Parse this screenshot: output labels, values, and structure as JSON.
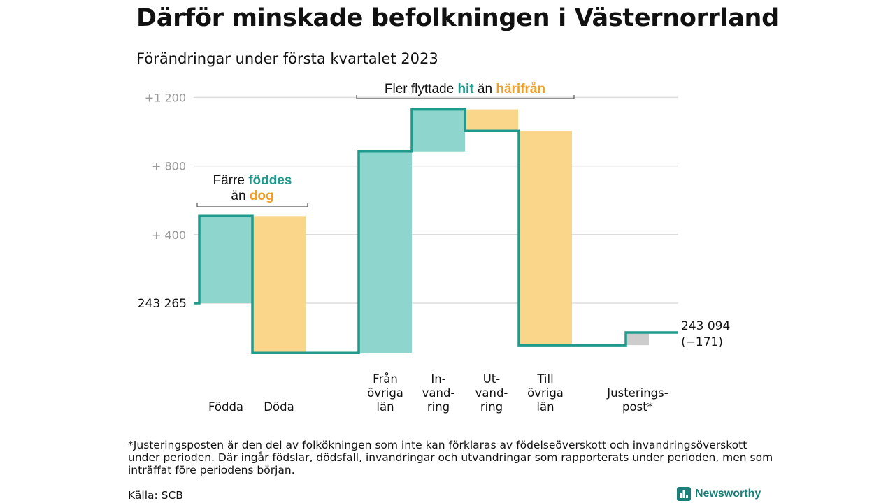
{
  "title": "Därför minskade befolkningen i Västernorrland",
  "subtitle": "Förändringar under första kvartalet 2023",
  "chart_data": {
    "type": "waterfall",
    "baseline": 243265,
    "baseline_label": "243 265",
    "end_label_line1": "243 094",
    "end_label_line2": "(−171)",
    "y_ticks": [
      {
        "value": 1200,
        "label": "+1 200"
      },
      {
        "value": 800,
        "label": "+ 800"
      },
      {
        "value": 400,
        "label": "+ 400"
      },
      {
        "value": 0,
        "label": ""
      }
    ],
    "ylim": [
      -300,
      1300
    ],
    "grid": true,
    "steps": [
      {
        "label_lines": [
          "Födda"
        ],
        "start": 0,
        "end": 508,
        "kind": "in"
      },
      {
        "label_lines": [
          "Döda"
        ],
        "start": 508,
        "end": -290,
        "kind": "out"
      },
      {
        "label_lines": [
          "Från",
          "övriga",
          "län"
        ],
        "start": -290,
        "end": 885,
        "kind": "in"
      },
      {
        "label_lines": [
          "In-",
          "vand-",
          "ring"
        ],
        "start": 885,
        "end": 1130,
        "kind": "in"
      },
      {
        "label_lines": [
          "Ut-",
          "vand-",
          "ring"
        ],
        "start": 1130,
        "end": 1005,
        "kind": "out"
      },
      {
        "label_lines": [
          "Till",
          "övriga",
          "län"
        ],
        "start": 1005,
        "end": -245,
        "kind": "out"
      },
      {
        "label_lines": [
          "Justerings-",
          "post*"
        ],
        "start": -245,
        "end": -171,
        "kind": "adjust"
      }
    ],
    "annotations": [
      {
        "parts": [
          "Färre ",
          "föddes"
        ],
        "line2_parts": [
          "än ",
          "dog"
        ]
      },
      {
        "parts": [
          "Fler flyttade ",
          "hit",
          " än ",
          "härifrån"
        ]
      }
    ],
    "colors": {
      "in": "#8dd5cd",
      "out": "#fad68b",
      "adjust": "#cccccc",
      "line": "#1f9a8c",
      "hit": "#1f9a8c",
      "dit": "#f0a028",
      "grid": "#dddddd",
      "tick": "#999999"
    }
  },
  "footnote": "*Justeringsposten är den del av folkökningen som inte kan förklaras av födelseöverskott och invandringsöverskott under perioden. Där ingår födslar, dödsfall, invandringar och utvandringar som rapporterats under perioden, men som inträffat före periodens början.",
  "source": "Källa: SCB",
  "brand": {
    "name": "Newsworthy",
    "icon": "bar-chart-icon"
  }
}
